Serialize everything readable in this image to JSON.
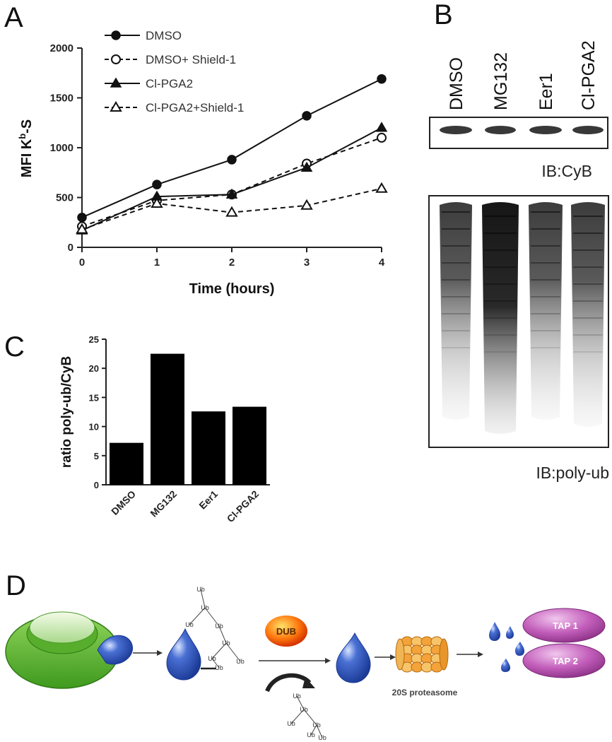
{
  "panels": {
    "a": "A",
    "b": "B",
    "c": "C",
    "d": "D"
  },
  "chart_data": [
    {
      "type": "line",
      "panel": "A",
      "xlabel": "Time (hours)",
      "ylabel_main": "MFI K",
      "ylabel_sup": "b",
      "ylabel_tail": "-S",
      "x": [
        0,
        1,
        2,
        3,
        4
      ],
      "xlim": [
        0,
        4
      ],
      "ylim": [
        0,
        2000
      ],
      "xticks": [
        "0",
        "1",
        "2",
        "3",
        "4"
      ],
      "yticks": [
        "0",
        "500",
        "1000",
        "1500",
        "2000"
      ],
      "grid": false,
      "legend_position": "top",
      "series": [
        {
          "name": "DMSO",
          "marker": "filled-circle",
          "line": "solid",
          "values": [
            300,
            630,
            880,
            1320,
            1690
          ]
        },
        {
          "name": "DMSO+ Shield-1",
          "marker": "open-circle",
          "line": "dashed",
          "values": [
            210,
            470,
            530,
            840,
            1100
          ]
        },
        {
          "name": "Cl-PGA2",
          "marker": "filled-triangle",
          "line": "solid",
          "values": [
            170,
            510,
            530,
            800,
            1200
          ]
        },
        {
          "name": "Cl-PGA2+Shield-1",
          "marker": "open-triangle",
          "line": "dashed",
          "values": [
            180,
            440,
            350,
            420,
            590
          ]
        }
      ]
    },
    {
      "type": "bar",
      "panel": "C",
      "ylabel": "ratio poly-ub/CyB",
      "categories": [
        "DMSO",
        "MG132",
        "Eer1",
        "Cl-PGA2"
      ],
      "values": [
        7.2,
        22.5,
        12.6,
        13.4
      ],
      "ylim": [
        0,
        25
      ],
      "yticks": [
        "0",
        "5",
        "10",
        "15",
        "20",
        "25"
      ],
      "grid": false,
      "bar_color": "#000000"
    }
  ],
  "blot": {
    "lanes": [
      "DMSO",
      "MG132",
      "Eer1",
      "Cl-PGA2"
    ],
    "top_label": "IB:CyB",
    "bottom_label": "IB:poly-ub"
  },
  "schematic": {
    "ub_label": "Ub",
    "dub_label": "DUB",
    "proteasome_label": "20S proteasome",
    "tap1_label": "TAP 1",
    "tap2_label": "TAP 2",
    "colors": {
      "ribosome": "#6abf3a",
      "drop": "#2a4fb0",
      "dub": "#e63c00",
      "proteasome": "#f2a23a",
      "tap": "#b046a8"
    }
  }
}
